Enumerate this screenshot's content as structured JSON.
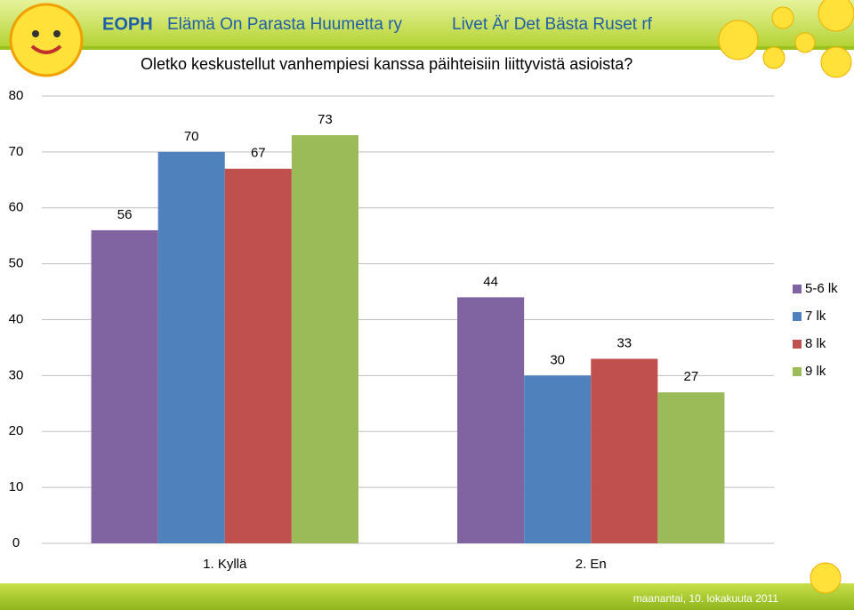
{
  "header": {
    "brand": "EOPH",
    "line1": "Elämä On Parasta Huumetta ry",
    "line2": "Livet Är Det Bästa Ruset rf"
  },
  "footer": {
    "date": "maanantai, 10. lokakuuta 2011"
  },
  "chart_data": {
    "type": "bar",
    "title": "Oletko keskustellut vanhempiesi kanssa päihteisiin liittyvistä asioista?",
    "categories": [
      "1. Kyllä",
      "2. En"
    ],
    "series": [
      {
        "name": "5-6 lk",
        "color": "#8064a2",
        "values": [
          56,
          44
        ]
      },
      {
        "name": "7 lk",
        "color": "#4f81bd",
        "values": [
          70,
          30
        ]
      },
      {
        "name": "8 lk",
        "color": "#c0504d",
        "values": [
          67,
          33
        ]
      },
      {
        "name": "9 lk",
        "color": "#9bbb59",
        "values": [
          73,
          27
        ]
      }
    ],
    "ylim": [
      0,
      80
    ],
    "yticks": [
      0,
      10,
      20,
      30,
      40,
      50,
      60,
      70,
      80
    ],
    "grid": true,
    "legend": "right"
  }
}
